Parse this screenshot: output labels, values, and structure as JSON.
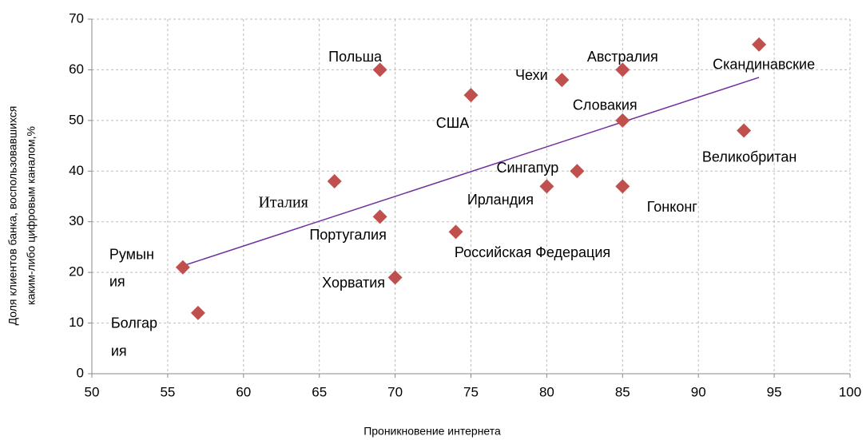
{
  "chart_data": {
    "type": "scatter",
    "x_label": "Проникновение интернета",
    "y_label": [
      "Доля клиентов банка, воспользовавшихся",
      "каким-либо цифровым каналом,%"
    ],
    "labels": [
      [
        "Румын",
        "ия"
      ],
      [
        "Болгар",
        "ия"
      ],
      [
        "Италия"
      ],
      [
        "Польша"
      ],
      [
        "Португалия"
      ],
      [
        "Хорватия"
      ],
      [
        "Российская Федерация"
      ],
      [
        "США"
      ],
      [
        "Ирландия"
      ],
      [
        "Сингапур"
      ],
      [
        "Чехи"
      ],
      [
        "Австралия"
      ],
      [
        "Словакия"
      ],
      [
        "Гонконг"
      ],
      [
        "Великобритан"
      ],
      [
        "Скандинавские"
      ]
    ],
    "x": [
      56,
      57,
      66,
      69,
      69,
      70,
      74,
      75,
      80,
      82,
      81,
      85,
      85,
      85,
      93,
      94
    ],
    "values": [
      21,
      12,
      38,
      60,
      31,
      19,
      28,
      55,
      37,
      40,
      58,
      60,
      50,
      37,
      48,
      65
    ],
    "color": "#c0504d",
    "trendline": true,
    "trendline_color": "#7030a0",
    "xlim": [
      50,
      100
    ],
    "xticks": [
      50,
      55,
      60,
      65,
      70,
      75,
      80,
      85,
      90,
      95,
      100
    ],
    "ylim": [
      0,
      70
    ],
    "yticks": [
      0,
      10,
      20,
      30,
      40,
      50,
      60,
      70
    ],
    "grid": true
  }
}
